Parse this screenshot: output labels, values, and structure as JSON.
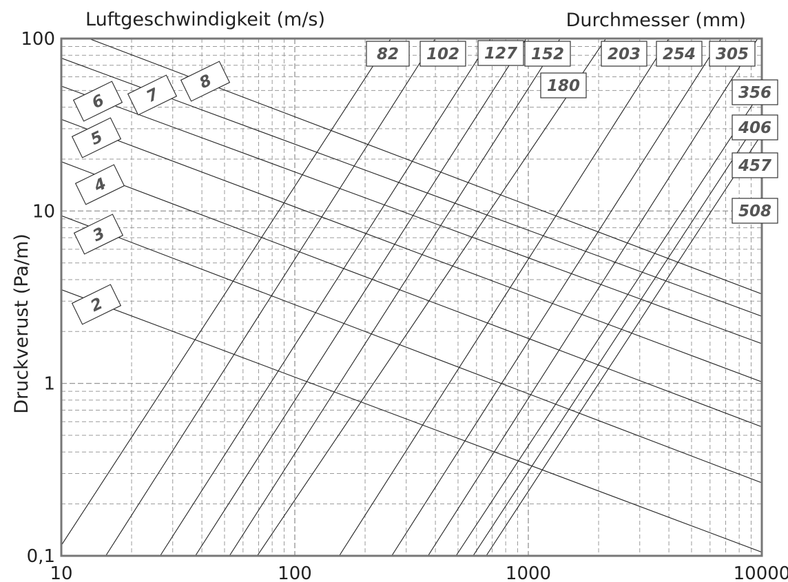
{
  "chart_data": {
    "type": "line",
    "title_left": "Luftgeschwindigkeit (m/s)",
    "title_right": "Durchmesser (mm)",
    "xlabel": "",
    "ylabel": "Druckverust (Pa/m)",
    "x_scale": "log",
    "y_scale": "log",
    "xlim": [
      10,
      10000
    ],
    "ylim": [
      0.1,
      100
    ],
    "grid": true,
    "x_ticks": [
      "10",
      "100",
      "1000",
      "10000"
    ],
    "y_ticks": [
      "0,1",
      "1",
      "10",
      "100"
    ],
    "velocity_series": [
      {
        "label": "2",
        "x": [
          10,
          10000
        ],
        "y": [
          3.5,
          0.105
        ]
      },
      {
        "label": "3",
        "x": [
          10,
          10000
        ],
        "y": [
          9.4,
          0.265
        ]
      },
      {
        "label": "4",
        "x": [
          10,
          10000
        ],
        "y": [
          19.3,
          0.56
        ]
      },
      {
        "label": "5",
        "x": [
          10,
          10000
        ],
        "y": [
          34,
          1.02
        ]
      },
      {
        "label": "6",
        "x": [
          10,
          10000
        ],
        "y": [
          53,
          1.7
        ]
      },
      {
        "label": "7",
        "x": [
          10,
          10000
        ],
        "y": [
          77,
          2.45
        ]
      },
      {
        "label": "8",
        "x": [
          10,
          10000
        ],
        "y": [
          115,
          3.3
        ]
      }
    ],
    "diameter_series": [
      {
        "label": "82",
        "x": [
          10,
          258
        ],
        "y": [
          0.115,
          100
        ]
      },
      {
        "label": "102",
        "x": [
          15.5,
          400
        ],
        "y": [
          0.1,
          100
        ]
      },
      {
        "label": "127",
        "x": [
          26.5,
          690
        ],
        "y": [
          0.1,
          100
        ]
      },
      {
        "label": "152",
        "x": [
          37.5,
          980
        ],
        "y": [
          0.1,
          100
        ]
      },
      {
        "label": "180",
        "x": [
          52.5,
          1370
        ],
        "y": [
          0.1,
          100
        ]
      },
      {
        "label": "203",
        "x": [
          69,
          2150
        ],
        "y": [
          0.1,
          100
        ]
      },
      {
        "label": "254",
        "x": [
          155,
          4000
        ],
        "y": [
          0.1,
          100
        ]
      },
      {
        "label": "305",
        "x": [
          260,
          6700
        ],
        "y": [
          0.1,
          100
        ]
      },
      {
        "label": "356",
        "x": [
          372,
          9600
        ],
        "y": [
          0.1,
          100
        ]
      },
      {
        "label": "406",
        "x": [
          490,
          10000
        ],
        "y": [
          0.1,
          50
        ]
      },
      {
        "label": "457",
        "x": [
          580,
          10000
        ],
        "y": [
          0.1,
          36
        ]
      },
      {
        "label": "508",
        "x": [
          660,
          10000
        ],
        "y": [
          0.1,
          28
        ]
      }
    ]
  }
}
